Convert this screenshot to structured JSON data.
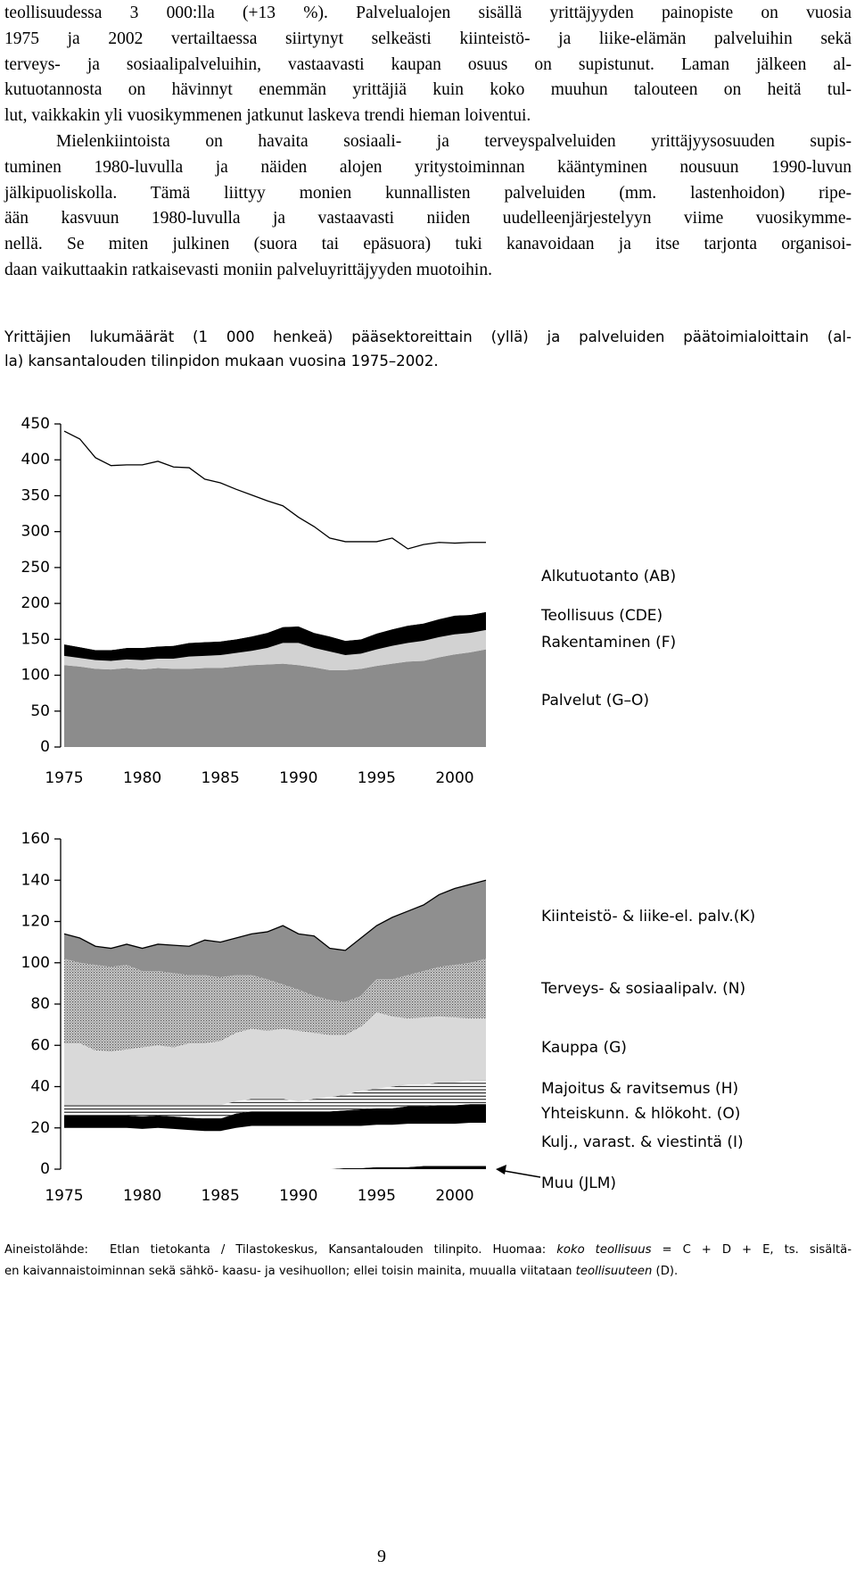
{
  "text": {
    "paragraphs": [
      [
        "teollisuudessa 3 000:lla (+13 %). Palvelualojen sisällä yrittäjyyden painopiste on vuosia",
        "1975 ja 2002 vertailtaessa siirtynyt selkeästi kiinteistö- ja liike-elämän palveluihin sekä",
        "terveys- ja sosiaalipalveluihin, vastaavasti kaupan osuus on supistunut. Laman jälkeen al-",
        "kutuotannosta on hävinnyt enemmän yrittäjiä kuin koko muuhun talouteen on heitä tul-",
        "lut, vaikkakin yli vuosikymmenen jatkunut laskeva trendi hieman loiventui."
      ],
      [
        "Mielenkiintoista on havaita sosiaali- ja terveyspalveluiden yrittäjyysosuuden supis-",
        "tuminen 1980-luvulla ja näiden alojen yritystoiminnan kääntyminen nousuun 1990-luvun",
        "jälkipuoliskolla. Tämä liittyy monien kunnallisten palveluiden (mm. lastenhoidon) ripe-",
        "ään kasvuun 1980-luvulla ja vastaavasti niiden uudelleenjärjestelyyn viime vuosikymme-",
        "nellä. Se miten julkinen (suora tai epäsuora) tuki kanavoidaan ja itse tarjonta organisoi-",
        "daan vaikuttaakin ratkaisevasti moniin palveluyrittäjyyden muotoihin."
      ]
    ]
  },
  "caption": [
    "Yrittäjien lukumäärät (1 000 henkeä) pääsektoreittain (yllä) ja palveluiden päätoimialoittain (al-",
    "la) kansantalouden tilinpidon mukaan vuosina 1975–2002."
  ],
  "chart_data": [
    {
      "type": "area",
      "stacked": true,
      "x": [
        1975,
        1976,
        1977,
        1978,
        1979,
        1980,
        1981,
        1982,
        1983,
        1984,
        1985,
        1986,
        1987,
        1988,
        1989,
        1990,
        1991,
        1992,
        1993,
        1994,
        1995,
        1996,
        1997,
        1998,
        1999,
        2000,
        2001,
        2002
      ],
      "xlim": [
        1975,
        2002
      ],
      "xticks": [
        1975,
        1980,
        1985,
        1990,
        1995,
        2000
      ],
      "ylim": [
        0,
        450
      ],
      "yticks": [
        0,
        50,
        100,
        150,
        200,
        250,
        300,
        350,
        400,
        450
      ],
      "series": [
        {
          "name": "Palvelut (G–O)",
          "color": "#8c8c8c",
          "values": [
            114,
            112,
            109,
            108,
            110,
            108,
            110,
            109,
            109,
            110,
            110,
            112,
            114,
            115,
            116,
            114,
            111,
            107,
            107,
            109,
            113,
            116,
            119,
            120,
            125,
            129,
            132,
            136
          ]
        },
        {
          "name": "Rakentaminen (F)",
          "color": "#d2d2d2",
          "values": [
            13,
            12,
            12,
            12,
            12,
            13,
            13,
            14,
            17,
            17,
            18,
            19,
            20,
            23,
            29,
            31,
            27,
            26,
            21,
            21,
            23,
            25,
            26,
            28,
            28,
            28,
            27,
            27
          ]
        },
        {
          "name": "Teollisuus (CDE)",
          "color": "#000000",
          "values": [
            16,
            15,
            14,
            15,
            16,
            17,
            17,
            18,
            19,
            19,
            19,
            19,
            20,
            21,
            22,
            23,
            21,
            21,
            20,
            20,
            22,
            23,
            24,
            24,
            25,
            26,
            25,
            25
          ]
        },
        {
          "name": "Alkutuotanto (AB)",
          "color": "#ffffff",
          "values": [
            297,
            290,
            268,
            257,
            255,
            255,
            258,
            249,
            244,
            227,
            221,
            209,
            197,
            184,
            169,
            152,
            148,
            137,
            138,
            136,
            128,
            127,
            107,
            110,
            107,
            101,
            101,
            97
          ]
        }
      ]
    },
    {
      "type": "area",
      "stacked": true,
      "x": [
        1975,
        1976,
        1977,
        1978,
        1979,
        1980,
        1981,
        1982,
        1983,
        1984,
        1985,
        1986,
        1987,
        1988,
        1989,
        1990,
        1991,
        1992,
        1993,
        1994,
        1995,
        1996,
        1997,
        1998,
        1999,
        2000,
        2001,
        2002
      ],
      "xlim": [
        1975,
        2002
      ],
      "xticks": [
        1975,
        1980,
        1985,
        1990,
        1995,
        2000
      ],
      "ylim": [
        0,
        160
      ],
      "yticks": [
        0,
        20,
        40,
        60,
        80,
        100,
        120,
        140,
        160
      ],
      "series": [
        {
          "name": "Muu (JLM)",
          "color": "#000000",
          "values": [
            0,
            0,
            0,
            0,
            0,
            0,
            0,
            0,
            0,
            0,
            0,
            0,
            0,
            0,
            0,
            0,
            0,
            0,
            0.5,
            0.5,
            1,
            1,
            1,
            1.5,
            1.5,
            1.5,
            1.5,
            1.5
          ]
        },
        {
          "name": "Kulj., varast. & viestintä (I)",
          "color": "#ffffff",
          "values": [
            20,
            20,
            20,
            20,
            20,
            19.5,
            20,
            19.5,
            19,
            18.5,
            18.5,
            20,
            21,
            21,
            21,
            21,
            21,
            21,
            20.5,
            20.5,
            20.5,
            20.5,
            21,
            20.5,
            20.5,
            20.5,
            21,
            21
          ]
        },
        {
          "name": "Yhteiskunn. & hlökoht. (O)",
          "color": "#000000",
          "values": [
            6,
            6,
            6,
            6,
            6,
            6,
            6,
            6,
            6,
            6,
            6,
            7,
            7,
            7,
            7,
            7,
            7,
            7,
            7.5,
            8,
            8,
            8,
            8.5,
            8.5,
            9,
            9,
            9,
            9
          ]
        },
        {
          "name": "Majoitus & ravitsemus (H)",
          "color": "#000000",
          "pattern": "stripes",
          "values": [
            5,
            5,
            5,
            5,
            5,
            5.5,
            5,
            5.5,
            6,
            6.5,
            6.5,
            6,
            6,
            6,
            6,
            5,
            6,
            7,
            7.5,
            9,
            9.5,
            10.5,
            10.5,
            10.5,
            11,
            11,
            11.5,
            11.5
          ]
        },
        {
          "name": "Kauppa (G)",
          "color": "#d9d9d9",
          "values": [
            30,
            30,
            26.5,
            26,
            27,
            28,
            29,
            28,
            30,
            30,
            31,
            33,
            34,
            33,
            34,
            34,
            32,
            30,
            29,
            31,
            37,
            34,
            32,
            32.5,
            32,
            31.5,
            30,
            30
          ]
        },
        {
          "name": "Terveys- & sosiaalipalv. (N)",
          "color": "#a8a8a8",
          "pattern": "dots",
          "values": [
            41,
            39,
            41.5,
            41,
            41,
            37,
            36,
            36,
            33,
            33,
            31,
            28,
            26,
            25,
            21.5,
            20,
            18,
            17,
            16,
            15,
            16,
            18,
            21,
            22.5,
            24,
            25.5,
            27,
            29
          ]
        },
        {
          "name": "Kiinteistö- & liike-el. palv.(K)",
          "color": "#8f8f8f",
          "values": [
            12,
            12,
            9,
            9,
            10,
            11,
            13,
            13.5,
            14,
            17,
            17,
            18,
            20,
            23,
            28.5,
            27,
            29,
            25,
            25,
            28,
            26,
            30,
            31,
            32,
            35,
            37,
            38,
            38
          ]
        }
      ]
    }
  ],
  "footnote": [
    [
      "Aineistolähde:  Etlan tietokanta / Tilastokeskus, Kansantalouden tilinpito. Huomaa: ",
      "koko teollisuus",
      " = C + D + E, ts. sisältä-"
    ],
    [
      "en kaivannaistoiminnan sekä sähkö- kaasu- ja vesihuollon; ellei toisin mainita, muualla viitataan ",
      "teollisuuteen",
      " (D)."
    ]
  ],
  "page_number": "9"
}
